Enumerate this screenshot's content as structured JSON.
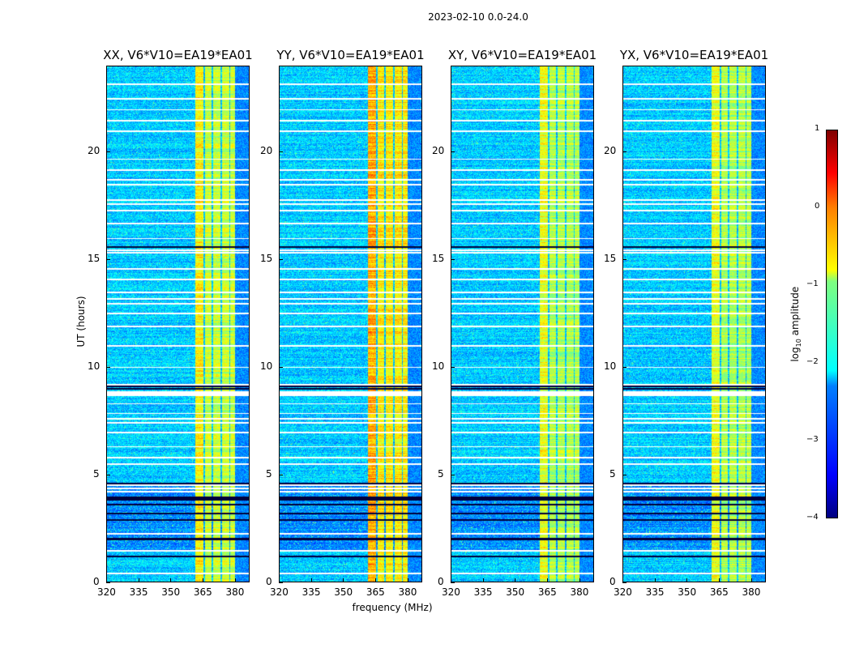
{
  "suptitle": "2023-02-10 0.0-24.0",
  "chart_data": {
    "type": "heatmap",
    "title": "2023-02-10 0.0-24.0",
    "xlabel": "frequency (MHz)",
    "ylabel": "UT (hours)",
    "xlim": [
      320,
      387
    ],
    "ylim": [
      0,
      24
    ],
    "xticks": [
      320,
      335,
      350,
      365,
      380
    ],
    "yticks": [
      0,
      5,
      10,
      15,
      20
    ],
    "panels": [
      {
        "title": "XX, V6*V10=EA19*EA01",
        "column_boost": 1.0
      },
      {
        "title": "YY, V6*V10=EA19*EA01",
        "column_boost": 1.15
      },
      {
        "title": "XY, V6*V10=EA19*EA01",
        "column_boost": 0.95
      },
      {
        "title": "YX, V6*V10=EA19*EA01",
        "column_boost": 0.95
      }
    ],
    "bright_bands_mhz": [
      [
        361.5,
        365.2
      ],
      [
        366,
        369.3
      ],
      [
        370,
        373.4
      ],
      [
        374.3,
        377.6
      ],
      [
        378,
        380.2
      ]
    ],
    "flagged_hours": [
      0.4,
      1.45,
      2.25,
      4.2,
      4.35,
      4.5,
      5.5,
      5.8,
      6.3,
      6.95,
      7.4,
      7.6,
      7.85,
      8.3,
      8.7,
      8.78,
      8.86,
      9.2,
      10.0,
      11.0,
      11.9,
      12.5,
      12.95,
      13.2,
      13.5,
      14.1,
      14.6,
      15.35,
      15.45,
      16.0,
      16.7,
      17.3,
      17.6,
      17.8,
      18.5,
      18.75,
      19.2,
      19.7,
      21.0,
      21.5,
      22.0,
      22.5,
      23.2
    ],
    "low_hours": [
      1.2,
      2.0,
      2.9,
      3.2,
      3.6,
      3.85,
      3.95,
      4.6,
      9.0,
      9.1,
      15.6
    ],
    "colorbar": {
      "label": "log10 amplitude",
      "range": [
        -4,
        1
      ],
      "ticks": [
        1,
        0,
        -1,
        -2,
        -3,
        -4
      ],
      "tick_labels": [
        "1",
        "0",
        "−1",
        "−2",
        "−3",
        "−4"
      ],
      "colormap": "jet"
    }
  }
}
